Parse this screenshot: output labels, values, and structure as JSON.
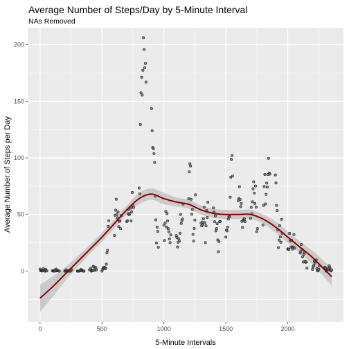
{
  "chart_data": {
    "type": "scatter",
    "title": "Average Number of Steps/Day by 5-Minute Interval",
    "subtitle": "NAs Removed",
    "xlabel": "5-Minute Intervals",
    "ylabel": "Average Number of Steps per Day",
    "xlim": [
      -100,
      2450
    ],
    "ylim": [
      -45,
      215
    ],
    "x_ticks": [
      0,
      500,
      1000,
      1500,
      2000
    ],
    "y_ticks": [
      0,
      50,
      100,
      150,
      200
    ],
    "x_tick_labels": [
      "0",
      "500",
      "1000",
      "1500",
      "2000"
    ],
    "y_tick_labels": [
      "0",
      "50",
      "100",
      "150",
      "200"
    ],
    "grid": true,
    "legend": "none",
    "colors": {
      "panel": "#ebebeb",
      "grid": "#ffffff",
      "point_fill": "#6b6b6b",
      "point_stroke": "#1a1a1a",
      "smooth_line": "#8b0000",
      "confidence_band": "#c4c4c4"
    },
    "series": [
      {
        "type": "scatter",
        "points": [
          [
            0,
            1.7
          ],
          [
            5,
            0.3
          ],
          [
            10,
            0.1
          ],
          [
            15,
            0.2
          ],
          [
            20,
            0.1
          ],
          [
            25,
            2.1
          ],
          [
            30,
            0.5
          ],
          [
            35,
            0.9
          ],
          [
            40,
            0
          ],
          [
            45,
            1.5
          ],
          [
            50,
            0.3
          ],
          [
            55,
            0.1
          ],
          [
            100,
            0.3
          ],
          [
            105,
            0
          ],
          [
            110,
            0.1
          ],
          [
            115,
            0.3
          ],
          [
            120,
            0
          ],
          [
            125,
            1.1
          ],
          [
            130,
            1.8
          ],
          [
            135,
            0.2
          ],
          [
            140,
            0.2
          ],
          [
            145,
            0.4
          ],
          [
            150,
            0.3
          ],
          [
            155,
            0
          ],
          [
            200,
            0
          ],
          [
            205,
            0
          ],
          [
            210,
            1.1
          ],
          [
            215,
            0
          ],
          [
            220,
            0
          ],
          [
            225,
            0.1
          ],
          [
            230,
            0
          ],
          [
            235,
            0.2
          ],
          [
            240,
            0
          ],
          [
            245,
            0
          ],
          [
            250,
            1.5
          ],
          [
            255,
            0.9
          ],
          [
            300,
            0
          ],
          [
            305,
            0
          ],
          [
            310,
            0
          ],
          [
            315,
            0
          ],
          [
            320,
            0.2
          ],
          [
            325,
            0.6
          ],
          [
            330,
            1.6
          ],
          [
            335,
            0.6
          ],
          [
            340,
            0.5
          ],
          [
            345,
            0.1
          ],
          [
            350,
            0
          ],
          [
            355,
            0
          ],
          [
            400,
            1.2
          ],
          [
            405,
            0.9
          ],
          [
            410,
            2.6
          ],
          [
            415,
            0
          ],
          [
            420,
            0.3
          ],
          [
            425,
            0.4
          ],
          [
            430,
            4.1
          ],
          [
            435,
            0.7
          ],
          [
            440,
            3.5
          ],
          [
            445,
            0.8
          ],
          [
            450,
            3.1
          ],
          [
            455,
            1.1
          ],
          [
            500,
            0
          ],
          [
            505,
            1.6
          ],
          [
            510,
            3
          ],
          [
            515,
            2.2
          ],
          [
            520,
            3.3
          ],
          [
            525,
            3
          ],
          [
            530,
            2.1
          ],
          [
            535,
            6.1
          ],
          [
            540,
            16
          ],
          [
            545,
            18.3
          ],
          [
            550,
            39.5
          ],
          [
            555,
            44.5
          ],
          [
            600,
            31.5
          ],
          [
            605,
            49.3
          ],
          [
            610,
            53.8
          ],
          [
            615,
            63.5
          ],
          [
            620,
            50
          ],
          [
            625,
            47.1
          ],
          [
            630,
            52.2
          ],
          [
            635,
            39.3
          ],
          [
            640,
            44
          ],
          [
            645,
            44.2
          ],
          [
            650,
            37.4
          ],
          [
            655,
            49
          ],
          [
            700,
            43.8
          ],
          [
            705,
            44.4
          ],
          [
            710,
            50.5
          ],
          [
            715,
            54.5
          ],
          [
            720,
            49.9
          ],
          [
            725,
            51
          ],
          [
            730,
            55.7
          ],
          [
            735,
            44.3
          ],
          [
            740,
            52.3
          ],
          [
            745,
            69.5
          ],
          [
            750,
            57.8
          ],
          [
            755,
            56.2
          ],
          [
            800,
            73.4
          ],
          [
            805,
            68.2
          ],
          [
            810,
            129.4
          ],
          [
            815,
            157.5
          ],
          [
            820,
            171.2
          ],
          [
            825,
            155.4
          ],
          [
            830,
            177.3
          ],
          [
            835,
            206.2
          ],
          [
            840,
            195.9
          ],
          [
            845,
            179.6
          ],
          [
            850,
            183.4
          ],
          [
            855,
            167
          ],
          [
            900,
            143.5
          ],
          [
            905,
            124
          ],
          [
            910,
            109.1
          ],
          [
            915,
            108.1
          ],
          [
            920,
            103.7
          ],
          [
            925,
            95.97
          ],
          [
            930,
            66.2
          ],
          [
            935,
            45.2
          ],
          [
            940,
            24.8
          ],
          [
            945,
            38.8
          ],
          [
            950,
            34.98
          ],
          [
            955,
            21.1
          ],
          [
            1000,
            40.6
          ],
          [
            1005,
            26.98
          ],
          [
            1010,
            42.4
          ],
          [
            1015,
            52.7
          ],
          [
            1020,
            38.9
          ],
          [
            1025,
            50.8
          ],
          [
            1030,
            44.3
          ],
          [
            1035,
            37.4
          ],
          [
            1040,
            34.7
          ],
          [
            1045,
            28.3
          ],
          [
            1050,
            25.1
          ],
          [
            1055,
            31.9
          ],
          [
            1100,
            31.4
          ],
          [
            1105,
            29.7
          ],
          [
            1110,
            21.3
          ],
          [
            1115,
            25.5
          ],
          [
            1120,
            28.4
          ],
          [
            1125,
            26.5
          ],
          [
            1130,
            33.4
          ],
          [
            1135,
            50
          ],
          [
            1140,
            42
          ],
          [
            1145,
            44.6
          ],
          [
            1150,
            46
          ],
          [
            1155,
            59.2
          ],
          [
            1200,
            63.9
          ],
          [
            1205,
            87.6
          ],
          [
            1210,
            94.8
          ],
          [
            1215,
            92.8
          ],
          [
            1220,
            63.4
          ],
          [
            1225,
            50.2
          ],
          [
            1230,
            54.5
          ],
          [
            1235,
            32.4
          ],
          [
            1240,
            26.5
          ],
          [
            1245,
            37.7
          ],
          [
            1250,
            45.1
          ],
          [
            1255,
            67.3
          ],
          [
            1300,
            42.3
          ],
          [
            1305,
            39.9
          ],
          [
            1310,
            43.3
          ],
          [
            1315,
            40.98
          ],
          [
            1320,
            46.2
          ],
          [
            1325,
            56.4
          ],
          [
            1330,
            42.8
          ],
          [
            1335,
            25.1
          ],
          [
            1340,
            39.96
          ],
          [
            1345,
            53.5
          ],
          [
            1350,
            47.3
          ],
          [
            1355,
            60.8
          ],
          [
            1400,
            55.8
          ],
          [
            1405,
            51.96
          ],
          [
            1410,
            43.6
          ],
          [
            1415,
            48.7
          ],
          [
            1420,
            35.5
          ],
          [
            1425,
            37.5
          ],
          [
            1430,
            41.8
          ],
          [
            1435,
            27.5
          ],
          [
            1440,
            17.1
          ],
          [
            1445,
            26.1
          ],
          [
            1450,
            43.6
          ],
          [
            1455,
            43.8
          ],
          [
            1500,
            30
          ],
          [
            1505,
            36.1
          ],
          [
            1510,
            35.5
          ],
          [
            1515,
            38.8
          ],
          [
            1520,
            45.96
          ],
          [
            1525,
            47.8
          ],
          [
            1530,
            48.1
          ],
          [
            1535,
            65.3
          ],
          [
            1540,
            82.9
          ],
          [
            1545,
            98.7
          ],
          [
            1550,
            102.1
          ],
          [
            1555,
            83.96
          ],
          [
            1600,
            62.1
          ],
          [
            1605,
            64.1
          ],
          [
            1610,
            74.5
          ],
          [
            1615,
            63.2
          ],
          [
            1620,
            56.9
          ],
          [
            1625,
            59.8
          ],
          [
            1630,
            43.9
          ],
          [
            1635,
            38.6
          ],
          [
            1640,
            44.7
          ],
          [
            1645,
            45.5
          ],
          [
            1650,
            46.2
          ],
          [
            1655,
            43.7
          ],
          [
            1700,
            46.6
          ],
          [
            1705,
            56.3
          ],
          [
            1710,
            50.7
          ],
          [
            1715,
            61.2
          ],
          [
            1720,
            72.7
          ],
          [
            1725,
            78.9
          ],
          [
            1730,
            68.9
          ],
          [
            1735,
            59.7
          ],
          [
            1740,
            75.1
          ],
          [
            1745,
            56.5
          ],
          [
            1750,
            34.8
          ],
          [
            1755,
            37.5
          ],
          [
            1800,
            40.7
          ],
          [
            1805,
            58
          ],
          [
            1810,
            74.7
          ],
          [
            1815,
            85.3
          ],
          [
            1820,
            59.3
          ],
          [
            1825,
            67.8
          ],
          [
            1830,
            77.7
          ],
          [
            1835,
            74.2
          ],
          [
            1840,
            85.3
          ],
          [
            1845,
            99.5
          ],
          [
            1850,
            86.6
          ],
          [
            1855,
            85.6
          ],
          [
            1900,
            84.9
          ],
          [
            1905,
            77.8
          ],
          [
            1910,
            58
          ],
          [
            1915,
            53.4
          ],
          [
            1920,
            36.3
          ],
          [
            1925,
            20.7
          ],
          [
            1930,
            27.4
          ],
          [
            1935,
            40
          ],
          [
            1940,
            30.2
          ],
          [
            1945,
            25.5
          ],
          [
            1950,
            45.7
          ],
          [
            1955,
            33.5
          ],
          [
            2000,
            19.6
          ],
          [
            2005,
            19
          ],
          [
            2010,
            19.3
          ],
          [
            2015,
            33.3
          ],
          [
            2020,
            26.8
          ],
          [
            2025,
            21.2
          ],
          [
            2030,
            27.3
          ],
          [
            2035,
            21.3
          ],
          [
            2040,
            19.5
          ],
          [
            2045,
            21.3
          ],
          [
            2050,
            32.3
          ],
          [
            2055,
            20.2
          ],
          [
            2100,
            15.9
          ],
          [
            2105,
            17.2
          ],
          [
            2110,
            23.5
          ],
          [
            2115,
            19.2
          ],
          [
            2120,
            12.5
          ],
          [
            2125,
            8
          ],
          [
            2130,
            14.7
          ],
          [
            2135,
            16.3
          ],
          [
            2140,
            8.7
          ],
          [
            2145,
            7.8
          ],
          [
            2150,
            8.1
          ],
          [
            2155,
            2.6
          ],
          [
            2200,
            1.5
          ],
          [
            2205,
            3.7
          ],
          [
            2210,
            4.8
          ],
          [
            2215,
            8.5
          ],
          [
            2220,
            7.1
          ],
          [
            2225,
            8.7
          ],
          [
            2230,
            9.8
          ],
          [
            2235,
            2.2
          ],
          [
            2240,
            0.3
          ],
          [
            2245,
            0.1
          ],
          [
            2250,
            1.6
          ],
          [
            2255,
            4.6
          ],
          [
            2300,
            3.3
          ],
          [
            2305,
            2.8
          ],
          [
            2310,
            0
          ],
          [
            2315,
            0.8
          ],
          [
            2320,
            0.96
          ],
          [
            2325,
            1.6
          ],
          [
            2330,
            2.6
          ],
          [
            2335,
            4.7
          ],
          [
            2340,
            3.3
          ],
          [
            2345,
            0.6
          ],
          [
            2350,
            0.2
          ],
          [
            2355,
            1.1
          ]
        ]
      },
      {
        "type": "smooth",
        "x": [
          0,
          100,
          200,
          300,
          400,
          500,
          600,
          700,
          800,
          900,
          1000,
          1100,
          1200,
          1300,
          1400,
          1500,
          1600,
          1700,
          1800,
          1900,
          2000,
          2100,
          2200,
          2300,
          2355
        ],
        "y": [
          -24,
          -14,
          -3,
          8,
          19,
          30,
          42,
          54,
          64,
          68,
          64,
          61,
          59,
          54,
          51,
          50,
          50,
          50,
          46,
          39,
          30,
          21,
          12,
          1,
          -5
        ],
        "band_upper": [
          -12,
          -5,
          3,
          13,
          23,
          34,
          46,
          58,
          69,
          73,
          69,
          65,
          63,
          58,
          55,
          54,
          54,
          54,
          50,
          44,
          35,
          26,
          18,
          8,
          3
        ],
        "band_lower": [
          -36,
          -23,
          -9,
          3,
          15,
          26,
          38,
          50,
          59,
          63,
          59,
          57,
          55,
          50,
          47,
          46,
          46,
          46,
          42,
          34,
          25,
          16,
          6,
          -6,
          -13
        ]
      }
    ]
  }
}
